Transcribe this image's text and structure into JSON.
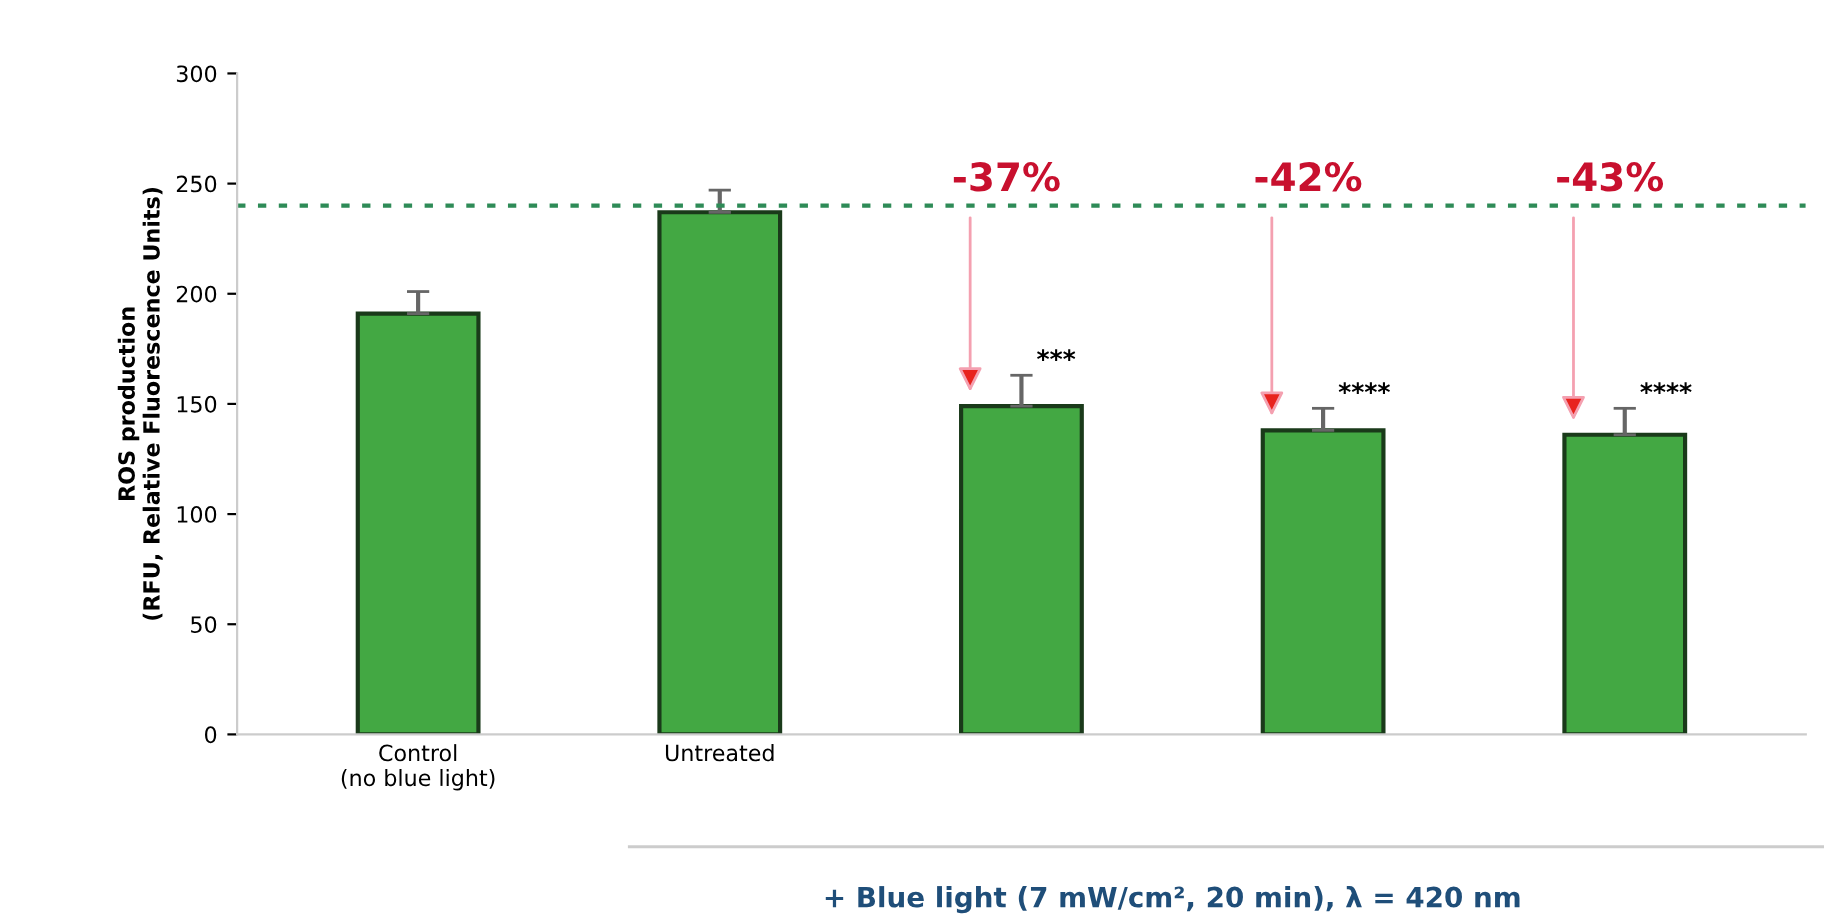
{
  "chart_data": {
    "type": "bar",
    "ylabel": "ROS production\n(RFU, Relative Fluorescence Units)",
    "categories": [
      "Control\n(no blue light)",
      "Untreated",
      null,
      null,
      null
    ],
    "values": [
      191,
      237,
      149,
      138,
      136
    ],
    "errors": [
      10,
      10,
      14,
      10,
      12
    ],
    "color": "#43a843",
    "ylim": [
      0,
      300
    ],
    "yticks": [
      0,
      50,
      100,
      150,
      200,
      250,
      300
    ],
    "ref_lines": [
      {
        "axis": "y",
        "value": 240,
        "color": "#2e8b57",
        "line_style": "dotted"
      }
    ],
    "annotations": [
      "-37%",
      "-42%",
      "-43%",
      "***",
      "****",
      "****",
      "+ Blue light (7 mW/cm², 20 min), λ = 420 nm"
    ],
    "grid": false
  }
}
